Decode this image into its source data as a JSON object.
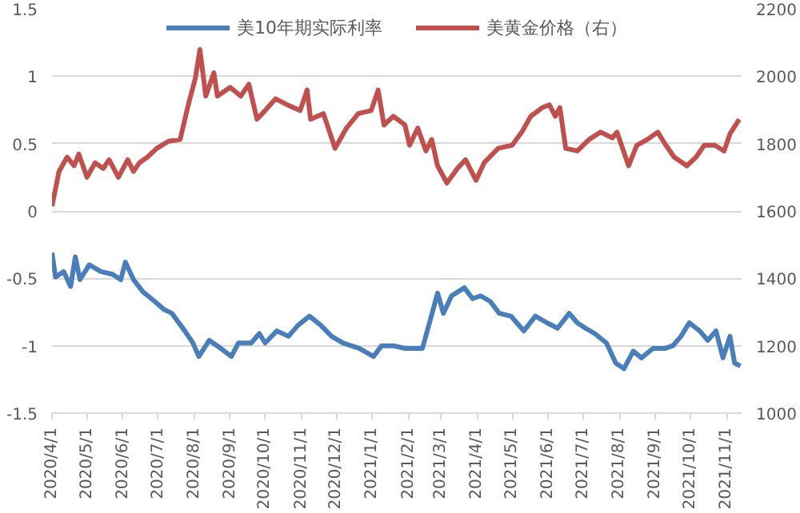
{
  "chart_data": {
    "type": "line",
    "series": [
      {
        "name": "美10年期实际利率",
        "color": "#4a7ebb",
        "x": [
          "2020-04-01",
          "2020-04-04",
          "2020-04-11",
          "2020-04-17",
          "2020-04-21",
          "2020-04-25",
          "2020-05-03",
          "2020-05-13",
          "2020-05-23",
          "2020-05-30",
          "2020-06-03",
          "2020-06-10",
          "2020-06-18",
          "2020-06-28",
          "2020-07-06",
          "2020-07-13",
          "2020-07-24",
          "2020-07-31",
          "2020-08-05",
          "2020-08-14",
          "2020-08-24",
          "2020-09-02",
          "2020-09-08",
          "2020-09-19",
          "2020-09-26",
          "2020-10-01",
          "2020-10-11",
          "2020-10-21",
          "2020-10-29",
          "2020-11-08",
          "2020-11-18",
          "2020-11-27",
          "2020-12-07",
          "2020-12-21",
          "2021-01-02",
          "2021-01-09",
          "2021-01-19",
          "2021-01-29",
          "2021-02-13",
          "2021-02-20",
          "2021-02-26",
          "2021-03-03",
          "2021-03-10",
          "2021-03-21",
          "2021-03-28",
          "2021-04-04",
          "2021-04-12",
          "2021-04-20",
          "2021-04-30",
          "2021-05-11",
          "2021-05-21",
          "2021-05-31",
          "2021-06-09",
          "2021-06-19",
          "2021-06-26",
          "2021-07-03",
          "2021-07-11",
          "2021-07-21",
          "2021-07-29",
          "2021-08-05",
          "2021-08-13",
          "2021-08-20",
          "2021-08-30",
          "2021-09-09",
          "2021-09-16",
          "2021-09-23",
          "2021-09-30",
          "2021-10-09",
          "2021-10-16",
          "2021-10-23",
          "2021-10-29",
          "2021-11-04",
          "2021-11-08",
          "2021-11-13"
        ],
        "values": [
          -0.31,
          -0.49,
          -0.45,
          -0.56,
          -0.34,
          -0.51,
          -0.4,
          -0.45,
          -0.47,
          -0.51,
          -0.38,
          -0.51,
          -0.6,
          -0.67,
          -0.73,
          -0.76,
          -0.89,
          -0.98,
          -1.08,
          -0.96,
          -1.02,
          -1.08,
          -0.98,
          -0.98,
          -0.91,
          -0.98,
          -0.89,
          -0.93,
          -0.85,
          -0.78,
          -0.85,
          -0.93,
          -0.98,
          -1.02,
          -1.08,
          -1.0,
          -1.0,
          -1.02,
          -1.02,
          -0.8,
          -0.61,
          -0.76,
          -0.63,
          -0.57,
          -0.65,
          -0.63,
          -0.67,
          -0.76,
          -0.78,
          -0.89,
          -0.78,
          -0.83,
          -0.87,
          -0.76,
          -0.83,
          -0.87,
          -0.91,
          -0.98,
          -1.13,
          -1.17,
          -1.04,
          -1.09,
          -1.02,
          -1.02,
          -1.0,
          -0.93,
          -0.83,
          -0.89,
          -0.96,
          -0.89,
          -1.09,
          -0.93,
          -1.13,
          -1.15
        ]
      },
      {
        "name": "美黄金价格（右）",
        "color": "#c0504d",
        "axis": "y2",
        "x": [
          "2020-04-01",
          "2020-04-07",
          "2020-04-14",
          "2020-04-20",
          "2020-04-24",
          "2020-05-01",
          "2020-05-08",
          "2020-05-15",
          "2020-05-20",
          "2020-05-28",
          "2020-06-05",
          "2020-06-10",
          "2020-06-15",
          "2020-06-22",
          "2020-06-30",
          "2020-07-10",
          "2020-07-20",
          "2020-07-27",
          "2020-08-02",
          "2020-08-06",
          "2020-08-11",
          "2020-08-18",
          "2020-08-21",
          "2020-09-01",
          "2020-09-10",
          "2020-09-17",
          "2020-09-24",
          "2020-10-01",
          "2020-10-10",
          "2020-10-20",
          "2020-10-31",
          "2020-11-06",
          "2020-11-09",
          "2020-11-20",
          "2020-11-30",
          "2020-12-10",
          "2020-12-20",
          "2020-12-31",
          "2021-01-06",
          "2021-01-11",
          "2021-01-19",
          "2021-01-29",
          "2021-02-02",
          "2021-02-09",
          "2021-02-16",
          "2021-02-21",
          "2021-02-26",
          "2021-03-06",
          "2021-03-15",
          "2021-03-22",
          "2021-03-31",
          "2021-04-07",
          "2021-04-19",
          "2021-05-01",
          "2021-05-10",
          "2021-05-17",
          "2021-05-27",
          "2021-06-02",
          "2021-06-07",
          "2021-06-11",
          "2021-06-16",
          "2021-06-26",
          "2021-07-06",
          "2021-07-16",
          "2021-07-26",
          "2021-07-30",
          "2021-08-09",
          "2021-08-16",
          "2021-08-25",
          "2021-09-03",
          "2021-09-10",
          "2021-09-17",
          "2021-09-28",
          "2021-10-06",
          "2021-10-13",
          "2021-10-22",
          "2021-10-30",
          "2021-11-04",
          "2021-11-12"
        ],
        "values": [
          1614,
          1717,
          1760,
          1734,
          1769,
          1700,
          1743,
          1726,
          1752,
          1700,
          1752,
          1717,
          1743,
          1760,
          1786,
          1807,
          1812,
          1915,
          1993,
          2079,
          1941,
          2010,
          1941,
          1967,
          1941,
          1976,
          1872,
          1898,
          1933,
          1915,
          1898,
          1959,
          1872,
          1889,
          1786,
          1847,
          1889,
          1898,
          1959,
          1855,
          1881,
          1855,
          1795,
          1846,
          1778,
          1812,
          1734,
          1683,
          1726,
          1752,
          1691,
          1743,
          1786,
          1795,
          1838,
          1881,
          1907,
          1915,
          1881,
          1907,
          1786,
          1778,
          1812,
          1834,
          1817,
          1834,
          1734,
          1795,
          1812,
          1834,
          1795,
          1760,
          1734,
          1760,
          1795,
          1795,
          1778,
          1829,
          1872
        ]
      }
    ],
    "xlim": [
      "2020-04-01",
      "2021-11-14"
    ],
    "xticks": [
      {
        "value": "2020-04-01",
        "label": "2020/4/1"
      },
      {
        "value": "2020-05-01",
        "label": "2020/5/1"
      },
      {
        "value": "2020-06-01",
        "label": "2020/6/1"
      },
      {
        "value": "2020-07-01",
        "label": "2020/7/1"
      },
      {
        "value": "2020-08-01",
        "label": "2020/8/1"
      },
      {
        "value": "2020-09-01",
        "label": "2020/9/1"
      },
      {
        "value": "2020-10-01",
        "label": "2020/10/1"
      },
      {
        "value": "2020-11-01",
        "label": "2020/11/1"
      },
      {
        "value": "2020-12-01",
        "label": "2020/12/1"
      },
      {
        "value": "2021-01-01",
        "label": "2021/1/1"
      },
      {
        "value": "2021-02-01",
        "label": "2021/2/1"
      },
      {
        "value": "2021-03-01",
        "label": "2021/3/1"
      },
      {
        "value": "2021-04-01",
        "label": "2021/4/1"
      },
      {
        "value": "2021-05-01",
        "label": "2021/5/1"
      },
      {
        "value": "2021-06-01",
        "label": "2021/6/1"
      },
      {
        "value": "2021-07-01",
        "label": "2021/7/1"
      },
      {
        "value": "2021-08-01",
        "label": "2021/8/1"
      },
      {
        "value": "2021-09-01",
        "label": "2021/9/1"
      },
      {
        "value": "2021-10-01",
        "label": "2021/10/1"
      },
      {
        "value": "2021-11-01",
        "label": "2021/11/1"
      }
    ],
    "ylim": [
      -1.5,
      1.5
    ],
    "yticks": [
      -1.5,
      -1,
      -0.5,
      0,
      0.5,
      1,
      1.5
    ],
    "y2lim": [
      1000,
      2200
    ],
    "y2ticks": [
      1000,
      1200,
      1400,
      1600,
      1800,
      2000,
      2200
    ],
    "grid": "y",
    "legend": "top",
    "marker": "none",
    "line_style": "solid"
  }
}
